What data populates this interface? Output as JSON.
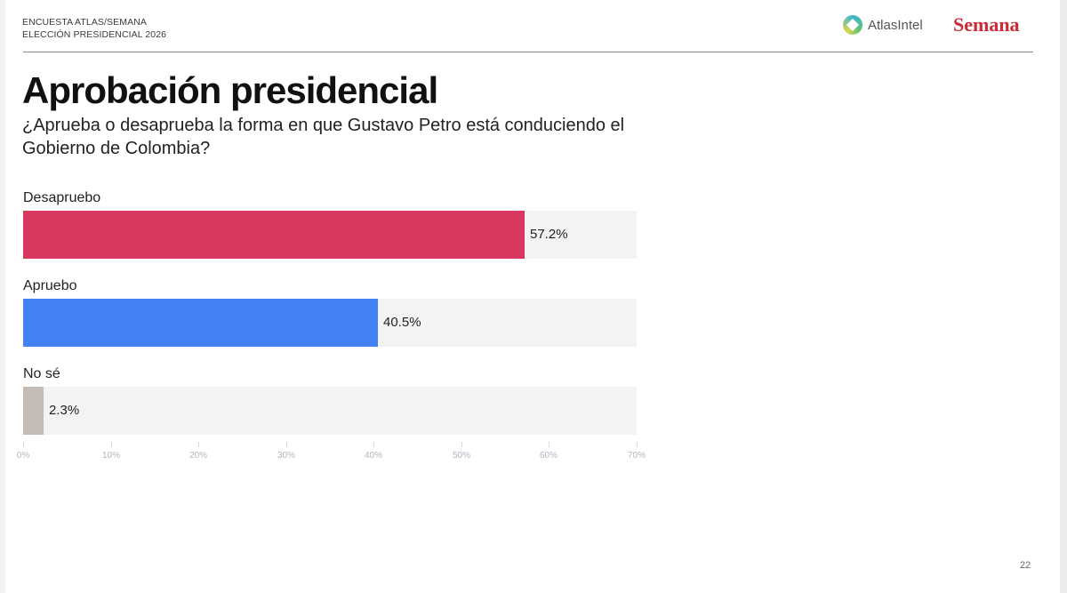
{
  "header": {
    "kicker_line1": "ENCUESTA ATLAS/SEMANA",
    "kicker_line2": "ELECCIÓN PRESIDENCIAL 2026",
    "logo_atlas": "AtlasIntel",
    "logo_semana": "Semana"
  },
  "title": "Aprobación presidencial",
  "subtitle": "¿Aprueba o desaprueba la forma en que Gustavo Petro está conduciendo el Gobierno de Colombia?",
  "page_number": "22",
  "colors": {
    "desapruebo": "#d8385e",
    "apruebo": "#4382f2",
    "no_se": "#c6bcb6",
    "track": "#f3f3f3"
  },
  "chart_data": {
    "type": "bar",
    "orientation": "horizontal",
    "title": "Aprobación presidencial",
    "subtitle": "¿Aprueba o desaprueba la forma en que Gustavo Petro está conduciendo el Gobierno de Colombia?",
    "categories": [
      "Desapruebo",
      "Apruebo",
      "No sé"
    ],
    "values": [
      57.2,
      40.5,
      2.3
    ],
    "value_labels": [
      "57.2%",
      "40.5%",
      "2.3%"
    ],
    "xlabel": "",
    "ylabel": "",
    "xlim": [
      0,
      70
    ],
    "x_ticks": [
      "0%",
      "10%",
      "20%",
      "30%",
      "40%",
      "50%",
      "60%",
      "70%"
    ],
    "grid": false,
    "legend": null
  }
}
